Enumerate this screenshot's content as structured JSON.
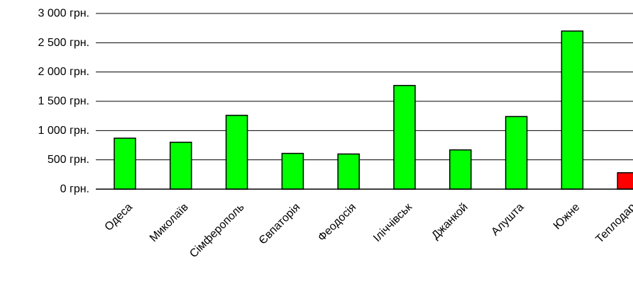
{
  "chart_data": {
    "type": "bar",
    "title": "",
    "xlabel": "",
    "ylabel": "",
    "categories": [
      "Одеса",
      "Миколаїв",
      "Сімферополь",
      "Євпаторія",
      "Феодосія",
      "Іліччівськ",
      "Джанкой",
      "Алушта",
      "Южне",
      "Теплодар"
    ],
    "values": [
      870,
      800,
      1260,
      610,
      600,
      1770,
      670,
      1240,
      2700,
      280
    ],
    "bar_colors": [
      "#00FF00",
      "#00FF00",
      "#00FF00",
      "#00FF00",
      "#00FF00",
      "#00FF00",
      "#00FF00",
      "#00FF00",
      "#00FF00",
      "#FF0000"
    ],
    "yticks": [
      0,
      500,
      1000,
      1500,
      2000,
      2500,
      3000
    ],
    "ytick_labels": [
      "0 грн.",
      "500 грн.",
      "1 000 грн.",
      "1 500 грн.",
      "2 000 грн.",
      "2 500 грн.",
      "3 000 грн."
    ],
    "ylim": [
      0,
      3000
    ],
    "grid": true,
    "legend": "none"
  }
}
